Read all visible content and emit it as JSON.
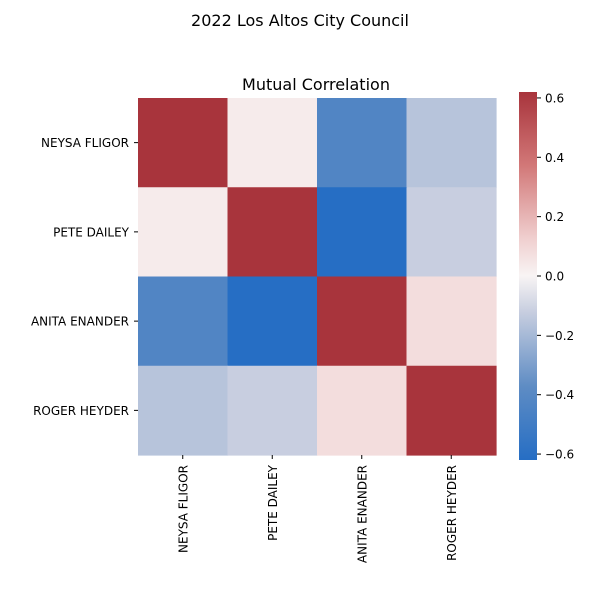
{
  "figure_title": "2022 Los Altos City Council",
  "chart_data": {
    "type": "heatmap",
    "title": "Mutual Correlation",
    "xlabel": "",
    "ylabel": "",
    "rows": [
      "NEYSA FLIGOR",
      "PETE DAILEY",
      "ANITA ENANDER",
      "ROGER HEYDER"
    ],
    "cols": [
      "NEYSA FLIGOR",
      "PETE DAILEY",
      "ANITA ENANDER",
      "ROGER HEYDER"
    ],
    "values": [
      [
        0.62,
        0.03,
        -0.43,
        -0.16
      ],
      [
        0.03,
        0.62,
        -0.62,
        -0.12
      ],
      [
        -0.43,
        -0.62,
        0.62,
        0.08
      ],
      [
        -0.16,
        -0.12,
        0.08,
        0.62
      ]
    ],
    "colormap": "vlag",
    "vmin": -0.62,
    "vmax": 0.62,
    "colorbar_ticks": [
      "0.6",
      "0.4",
      "0.2",
      "0.0",
      "−0.2",
      "−0.4",
      "−0.6"
    ],
    "colorbar_tick_values": [
      0.6,
      0.4,
      0.2,
      0.0,
      -0.2,
      -0.4,
      -0.6
    ]
  }
}
